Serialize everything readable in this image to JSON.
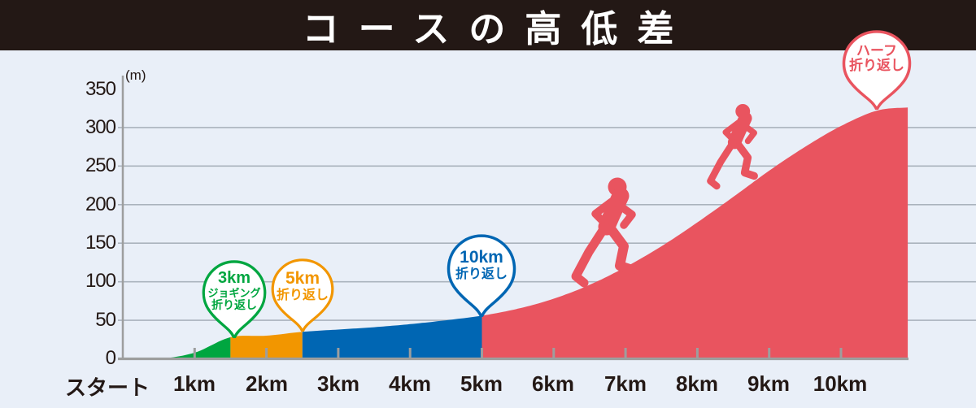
{
  "header": {
    "title": "コースの高低差"
  },
  "y_axis": {
    "unit_label": "(m)",
    "tick_labels": [
      "350",
      "300",
      "250",
      "200",
      "150",
      "100",
      "50",
      "0"
    ],
    "tick_values": [
      350,
      300,
      250,
      200,
      150,
      100,
      50,
      0
    ]
  },
  "x_axis": {
    "tick_labels": [
      "スタート",
      "1km",
      "2km",
      "3km",
      "4km",
      "5km",
      "6km",
      "7km",
      "8km",
      "9km",
      "10km"
    ]
  },
  "markers": {
    "turn_3km": {
      "lines": [
        "3km",
        "ジョギング",
        "折り返し"
      ],
      "color": "#00a640",
      "km": 1.5
    },
    "turn_5km": {
      "lines": [
        "5km",
        "折り返し"
      ],
      "color": "#f29600",
      "km": 2.5
    },
    "turn_10km": {
      "lines": [
        "10km",
        "折り返し"
      ],
      "color": "#0066b3",
      "km": 5
    },
    "turn_half": {
      "lines": [
        "ハーフ",
        "折り返し"
      ],
      "color": "#e9545f",
      "km": 10.5
    }
  },
  "chart_data": {
    "type": "area",
    "title": "コースの高低差",
    "ylabel": "(m)",
    "ylim": [
      0,
      350
    ],
    "grid": true,
    "x_tick_km": [
      0,
      1,
      2,
      3,
      4,
      5,
      6,
      7,
      8,
      9,
      10
    ],
    "profile_km_m": [
      [
        0,
        0
      ],
      [
        0.5,
        0
      ],
      [
        1,
        8
      ],
      [
        1.5,
        28
      ],
      [
        2,
        30
      ],
      [
        2.5,
        35
      ],
      [
        3,
        38
      ],
      [
        3.5,
        41
      ],
      [
        4,
        45
      ],
      [
        4.5,
        50
      ],
      [
        5,
        56
      ],
      [
        5.5,
        65
      ],
      [
        6,
        78
      ],
      [
        6.5,
        96
      ],
      [
        7,
        119
      ],
      [
        7.5,
        146
      ],
      [
        8,
        177
      ],
      [
        8.5,
        210
      ],
      [
        9,
        244
      ],
      [
        9.5,
        275
      ],
      [
        10,
        302
      ],
      [
        10.5,
        322
      ],
      [
        10.93,
        326
      ]
    ],
    "segments": [
      {
        "label": "3km ジョギング折り返し",
        "km_from": 0,
        "km_to": 1.5,
        "color": "#00a640"
      },
      {
        "label": "5km 折り返し",
        "km_from": 1.5,
        "km_to": 2.5,
        "color": "#f29600"
      },
      {
        "label": "10km 折り返し",
        "km_from": 2.5,
        "km_to": 5,
        "color": "#0066b3"
      },
      {
        "label": "ハーフ折り返し",
        "km_from": 5,
        "km_to": 10.93,
        "color": "#e9545f"
      }
    ]
  },
  "colors": {
    "background": "#e9eff8",
    "header_bg": "#231815",
    "grid": "#aab3bd",
    "axis": "#9d9e9e",
    "text": "#231815",
    "runner": "#e9545f"
  }
}
